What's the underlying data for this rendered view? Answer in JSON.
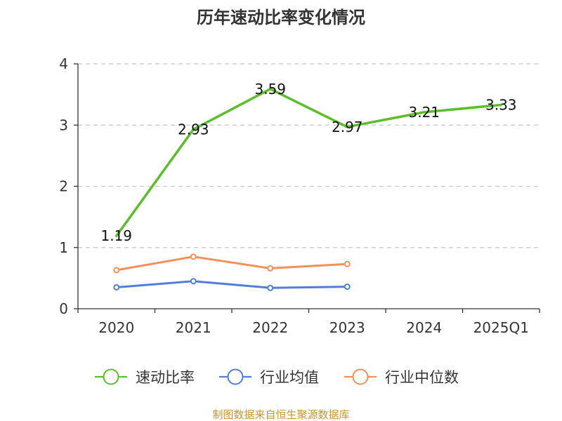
{
  "chart_data": {
    "type": "line",
    "title": "历年速动比率变化情况",
    "categories": [
      "2020",
      "2021",
      "2022",
      "2023",
      "2024",
      "2025Q1"
    ],
    "ylim": [
      0,
      4
    ],
    "yticks": [
      "0",
      "1",
      "2",
      "3",
      "4"
    ],
    "grid": "horizontal-dashed",
    "legend_position": "bottom",
    "series": [
      {
        "name": "速动比率",
        "color": "#5cbf2a",
        "values": [
          1.19,
          2.93,
          3.59,
          2.97,
          3.21,
          3.33
        ],
        "labels": [
          "1.19",
          "2.93",
          "3.59",
          "2.97",
          "3.21",
          "3.33"
        ],
        "show_markers": false
      },
      {
        "name": "行业均值",
        "color": "#4f7fd8",
        "values": [
          0.35,
          0.45,
          0.34,
          0.36,
          null,
          null
        ],
        "show_markers": true
      },
      {
        "name": "行业中位数",
        "color": "#f59158",
        "values": [
          0.63,
          0.85,
          0.66,
          0.73,
          null,
          null
        ],
        "show_markers": true
      }
    ]
  },
  "source": "制图数据来自恒生聚源数据库"
}
